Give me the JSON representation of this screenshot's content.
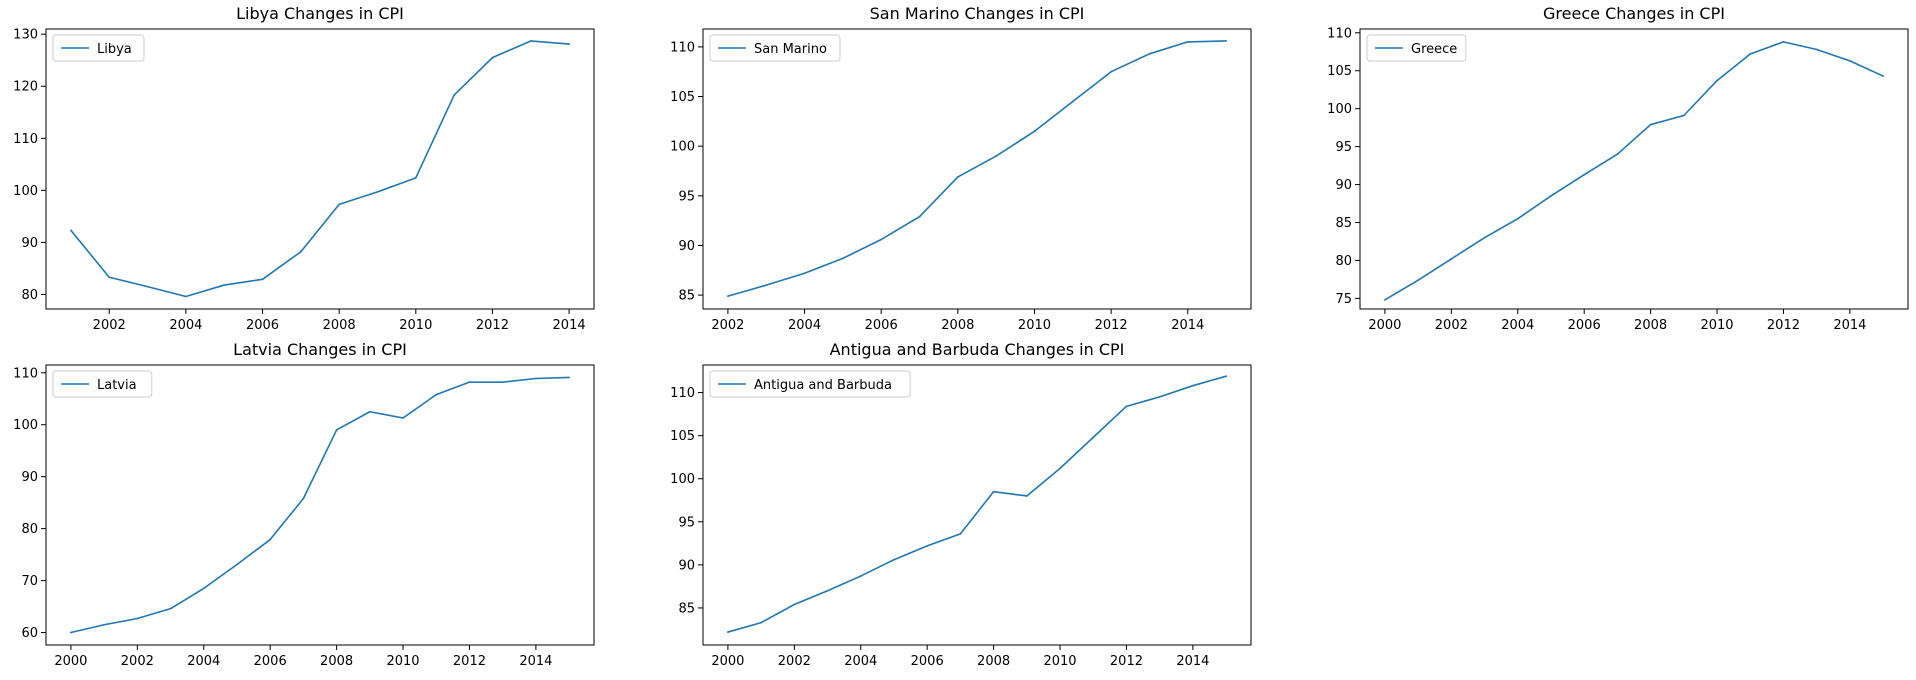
{
  "figure": {
    "colors": {
      "line": "#1f77b4",
      "axis": "#000000",
      "background": "#ffffff",
      "legend_border": "#cccccc"
    }
  },
  "chart_data": [
    {
      "type": "line",
      "title": "Libya Changes in CPI",
      "xlabel": "",
      "ylabel": "",
      "xlim": [
        2000.35,
        2014.65
      ],
      "ylim": [
        77.2,
        131
      ],
      "xticks": [
        2002,
        2004,
        2006,
        2008,
        2010,
        2012,
        2014
      ],
      "yticks": [
        80,
        90,
        100,
        110,
        120,
        130
      ],
      "grid": false,
      "legend_position": "upper-left",
      "series": [
        {
          "name": "Libya",
          "x": [
            2001,
            2002,
            2003,
            2004,
            2005,
            2006,
            2007,
            2008,
            2009,
            2010,
            2011,
            2012,
            2013,
            2014
          ],
          "y": [
            92.3,
            83.3,
            81.5,
            79.6,
            81.8,
            82.9,
            88.2,
            97.3,
            99.7,
            102.4,
            118.3,
            125.5,
            128.7,
            128.1
          ]
        }
      ]
    },
    {
      "type": "line",
      "title": "San Marino Changes in CPI",
      "xlabel": "",
      "ylabel": "",
      "xlim": [
        2001.35,
        2015.65
      ],
      "ylim": [
        83.6,
        111.8
      ],
      "xticks": [
        2002,
        2004,
        2006,
        2008,
        2010,
        2012,
        2014
      ],
      "yticks": [
        85,
        90,
        95,
        100,
        105,
        110
      ],
      "grid": false,
      "legend_position": "upper-left",
      "series": [
        {
          "name": "San Marino",
          "x": [
            2002,
            2003,
            2004,
            2005,
            2006,
            2007,
            2008,
            2009,
            2010,
            2011,
            2012,
            2013,
            2014,
            2015
          ],
          "y": [
            84.9,
            86.0,
            87.2,
            88.7,
            90.6,
            92.9,
            96.9,
            99.0,
            101.5,
            104.5,
            107.5,
            109.3,
            110.5,
            110.6
          ]
        }
      ]
    },
    {
      "type": "line",
      "title": "Greece Changes in CPI",
      "xlabel": "",
      "ylabel": "",
      "xlim": [
        1999.25,
        2015.75
      ],
      "ylim": [
        73.6,
        110.5
      ],
      "xticks": [
        2000,
        2002,
        2004,
        2006,
        2008,
        2010,
        2012,
        2014
      ],
      "yticks": [
        75,
        80,
        85,
        90,
        95,
        100,
        105,
        110
      ],
      "grid": false,
      "legend_position": "upper-left",
      "series": [
        {
          "name": "Greece",
          "x": [
            2000,
            2001,
            2002,
            2003,
            2004,
            2005,
            2006,
            2007,
            2008,
            2009,
            2010,
            2011,
            2012,
            2013,
            2014,
            2015
          ],
          "y": [
            74.8,
            77.4,
            80.2,
            83.0,
            85.5,
            88.5,
            91.3,
            94.0,
            97.9,
            99.1,
            103.7,
            107.2,
            108.8,
            107.8,
            106.3,
            104.3
          ]
        }
      ]
    },
    {
      "type": "line",
      "title": "Latvia Changes in CPI",
      "xlabel": "",
      "ylabel": "",
      "xlim": [
        1999.25,
        2015.75
      ],
      "ylim": [
        57.6,
        111.5
      ],
      "xticks": [
        2000,
        2002,
        2004,
        2006,
        2008,
        2010,
        2012,
        2014
      ],
      "yticks": [
        60,
        70,
        80,
        90,
        100,
        110
      ],
      "grid": false,
      "legend_position": "upper-left",
      "series": [
        {
          "name": "Latvia",
          "x": [
            2000,
            2001,
            2002,
            2003,
            2004,
            2005,
            2006,
            2007,
            2008,
            2009,
            2010,
            2011,
            2012,
            2013,
            2014,
            2015
          ],
          "y": [
            60.0,
            61.5,
            62.7,
            64.6,
            68.5,
            73.1,
            77.9,
            85.8,
            99.0,
            102.5,
            101.3,
            105.8,
            108.2,
            108.2,
            108.9,
            109.1
          ]
        }
      ]
    },
    {
      "type": "line",
      "title": "Antigua and Barbuda Changes in CPI",
      "xlabel": "",
      "ylabel": "",
      "xlim": [
        1999.25,
        2015.75
      ],
      "ylim": [
        80.7,
        113.2
      ],
      "xticks": [
        2000,
        2002,
        2004,
        2006,
        2008,
        2010,
        2012,
        2014
      ],
      "yticks": [
        85,
        90,
        95,
        100,
        105,
        110
      ],
      "grid": false,
      "legend_position": "upper-left",
      "series": [
        {
          "name": "Antigua and Barbuda",
          "x": [
            2000,
            2001,
            2002,
            2003,
            2004,
            2005,
            2006,
            2007,
            2008,
            2009,
            2010,
            2011,
            2012,
            2013,
            2014,
            2015
          ],
          "y": [
            82.2,
            83.3,
            85.4,
            87.0,
            88.7,
            90.6,
            92.2,
            93.6,
            98.5,
            98.0,
            101.2,
            104.8,
            108.4,
            109.5,
            110.8,
            111.9
          ]
        }
      ]
    }
  ]
}
